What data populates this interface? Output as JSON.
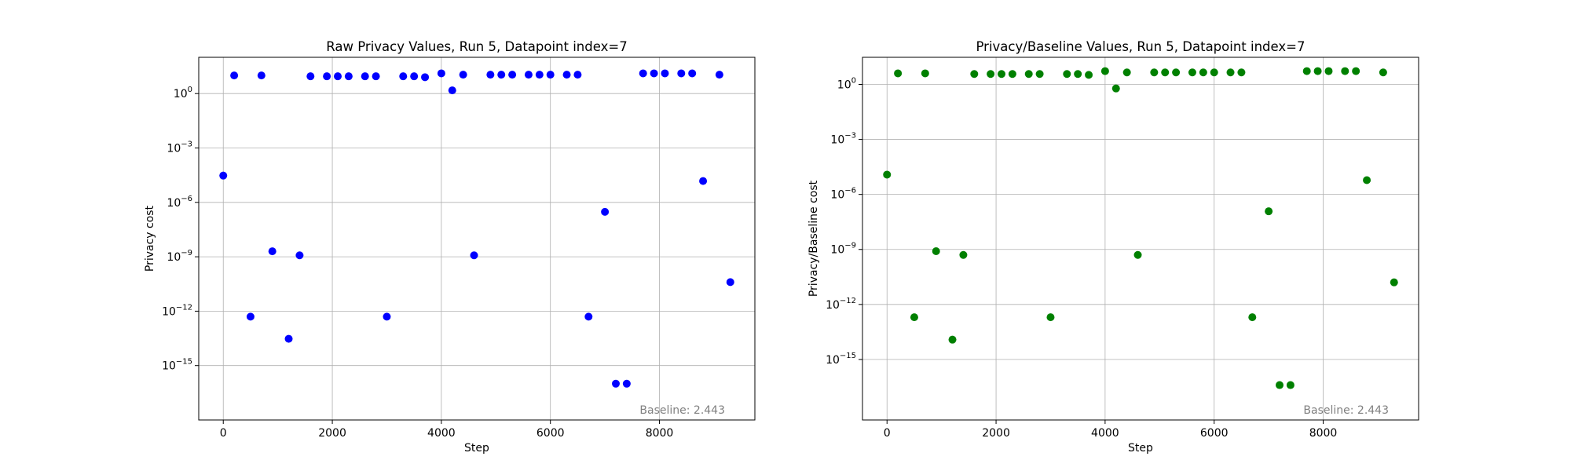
{
  "chart_data": [
    {
      "type": "scatter",
      "title": "Raw Privacy Values, Run 5, Datapoint index=7",
      "xlabel": "Step",
      "ylabel": "Privacy cost",
      "yscale": "log",
      "xlim": [
        -450,
        9750
      ],
      "ylim": [
        1e-18,
        100.0
      ],
      "xticks": [
        0,
        2000,
        4000,
        6000,
        8000
      ],
      "xtick_labels": [
        "0",
        "2000",
        "4000",
        "6000",
        "8000"
      ],
      "yticks": [
        1.0,
        0.001,
        1e-06,
        1e-09,
        1e-12,
        1e-15
      ],
      "ytick_labels": [
        {
          "base": "10",
          "exp": "0"
        },
        {
          "base": "10",
          "exp": "−3"
        },
        {
          "base": "10",
          "exp": "−6"
        },
        {
          "base": "10",
          "exp": "−9"
        },
        {
          "base": "10",
          "exp": "−12"
        },
        {
          "base": "10",
          "exp": "−15"
        }
      ],
      "grid": true,
      "color": "#0000ff",
      "annotation": "Baseline: 2.443",
      "annotation_position": "bottom-right",
      "x": [
        0,
        200,
        500,
        700,
        900,
        1200,
        1400,
        1600,
        1900,
        2100,
        2300,
        2600,
        2800,
        3000,
        3300,
        3500,
        3700,
        4000,
        4200,
        4400,
        4600,
        4900,
        5100,
        5300,
        5600,
        5800,
        6000,
        6300,
        6500,
        6700,
        7000,
        7200,
        7400,
        7700,
        7900,
        8100,
        8400,
        8600,
        8800,
        9100,
        9300
      ],
      "y": [
        3e-05,
        10,
        5e-13,
        10,
        2e-09,
        3e-14,
        1.2e-09,
        9,
        9,
        9,
        9,
        9,
        9,
        5e-13,
        9,
        9,
        8,
        13,
        1.5,
        11,
        1.2e-09,
        11,
        11,
        11,
        11,
        11,
        11,
        11,
        11,
        5e-13,
        3e-07,
        1e-16,
        1e-16,
        13,
        13,
        13,
        13,
        13,
        1.5e-05,
        11,
        4e-11
      ]
    },
    {
      "type": "scatter",
      "title": "Privacy/Baseline Values, Run 5, Datapoint index=7",
      "xlabel": "Step",
      "ylabel": "Privacy/Baseline cost",
      "yscale": "log",
      "xlim": [
        -450,
        9750
      ],
      "ylim": [
        5e-19,
        30
      ],
      "xticks": [
        0,
        2000,
        4000,
        6000,
        8000
      ],
      "xtick_labels": [
        "0",
        "2000",
        "4000",
        "6000",
        "8000"
      ],
      "yticks": [
        1.0,
        0.001,
        1e-06,
        1e-09,
        1e-12,
        1e-15
      ],
      "ytick_labels": [
        {
          "base": "10",
          "exp": "0"
        },
        {
          "base": "10",
          "exp": "−3"
        },
        {
          "base": "10",
          "exp": "−6"
        },
        {
          "base": "10",
          "exp": "−9"
        },
        {
          "base": "10",
          "exp": "−12"
        },
        {
          "base": "10",
          "exp": "−15"
        }
      ],
      "grid": true,
      "color": "#008000",
      "annotation": "Baseline: 2.443",
      "annotation_position": "bottom-right",
      "x": [
        0,
        200,
        500,
        700,
        900,
        1200,
        1400,
        1600,
        1900,
        2100,
        2300,
        2600,
        2800,
        3000,
        3300,
        3500,
        3700,
        4000,
        4200,
        4400,
        4600,
        4900,
        5100,
        5300,
        5600,
        5800,
        6000,
        6300,
        6500,
        6700,
        7000,
        7200,
        7400,
        7700,
        7900,
        8100,
        8400,
        8600,
        8800,
        9100,
        9300
      ],
      "y": [
        1.2e-05,
        4,
        2e-13,
        4,
        8e-10,
        1.2e-14,
        5e-10,
        3.7,
        3.7,
        3.7,
        3.7,
        3.7,
        3.7,
        2e-13,
        3.7,
        3.7,
        3.3,
        5.3,
        0.6,
        4.5,
        5e-10,
        4.5,
        4.5,
        4.5,
        4.5,
        4.5,
        4.5,
        4.5,
        4.5,
        2e-13,
        1.2e-07,
        4e-17,
        4e-17,
        5.3,
        5.3,
        5.3,
        5.3,
        5.3,
        6e-06,
        4.5,
        1.6e-11
      ]
    }
  ]
}
